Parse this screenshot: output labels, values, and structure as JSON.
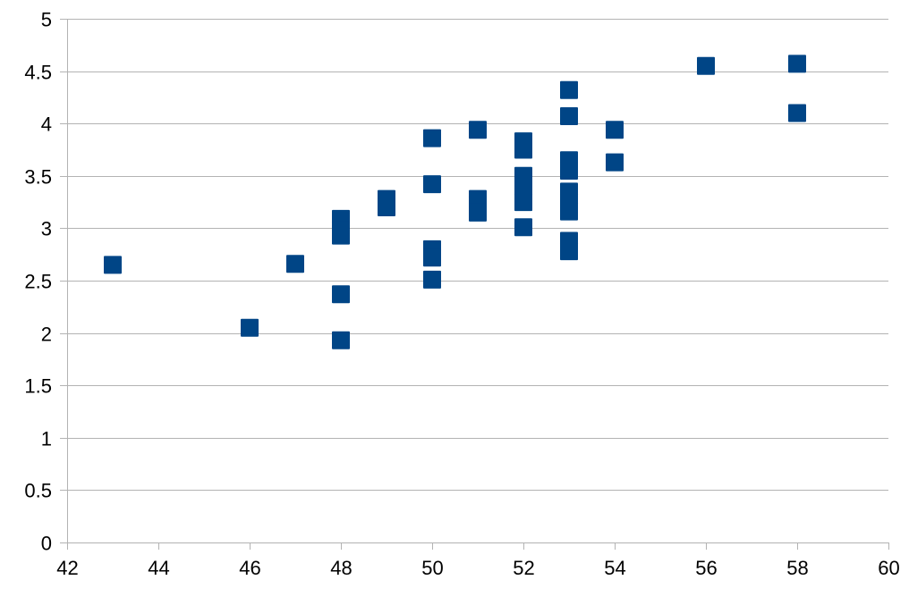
{
  "chart_data": {
    "type": "scatter",
    "title": "",
    "xlabel": "",
    "ylabel": "",
    "xlim": [
      42,
      60
    ],
    "ylim": [
      0,
      5
    ],
    "x_ticks": [
      42,
      44,
      46,
      48,
      50,
      52,
      54,
      56,
      58,
      60
    ],
    "y_ticks": [
      0,
      0.5,
      1,
      1.5,
      2,
      2.5,
      3,
      3.5,
      4,
      4.5,
      5
    ],
    "x_tick_labels": [
      "42",
      "44",
      "46",
      "48",
      "50",
      "52",
      "54",
      "56",
      "58",
      "60"
    ],
    "y_tick_labels": [
      "0",
      "0.5",
      "1",
      "1.5",
      "2",
      "2.5",
      "3",
      "3.5",
      "4",
      "4.5",
      "5"
    ],
    "grid": "horizontal",
    "legend": "none",
    "marker": "square",
    "marker_color": "#004586",
    "gridline_color": "#b3b3b3",
    "axis_color": "#b3b3b3",
    "series": [
      {
        "points": [
          [
            43,
            2.65
          ],
          [
            46,
            2.05
          ],
          [
            47,
            2.66
          ],
          [
            48,
            3.09
          ],
          [
            48,
            2.98
          ],
          [
            48,
            2.93
          ],
          [
            48,
            2.37
          ],
          [
            48,
            1.93
          ],
          [
            49,
            3.28
          ],
          [
            49,
            3.2
          ],
          [
            50,
            3.86
          ],
          [
            50,
            3.42
          ],
          [
            50,
            2.8
          ],
          [
            50,
            2.72
          ],
          [
            50,
            2.51
          ],
          [
            51,
            3.94
          ],
          [
            51,
            3.28
          ],
          [
            51,
            3.22
          ],
          [
            51,
            3.15
          ],
          [
            52,
            3.83
          ],
          [
            52,
            3.75
          ],
          [
            52,
            3.5
          ],
          [
            52,
            3.4
          ],
          [
            52,
            3.25
          ],
          [
            52,
            3.01
          ],
          [
            53,
            4.32
          ],
          [
            53,
            4.07
          ],
          [
            53,
            3.65
          ],
          [
            53,
            3.55
          ],
          [
            53,
            3.35
          ],
          [
            53,
            3.25
          ],
          [
            53,
            3.16
          ],
          [
            53,
            2.88
          ],
          [
            53,
            2.78
          ],
          [
            54,
            3.94
          ],
          [
            54,
            3.63
          ],
          [
            56,
            4.55
          ],
          [
            58,
            4.57
          ],
          [
            58,
            4.1
          ]
        ]
      }
    ]
  }
}
